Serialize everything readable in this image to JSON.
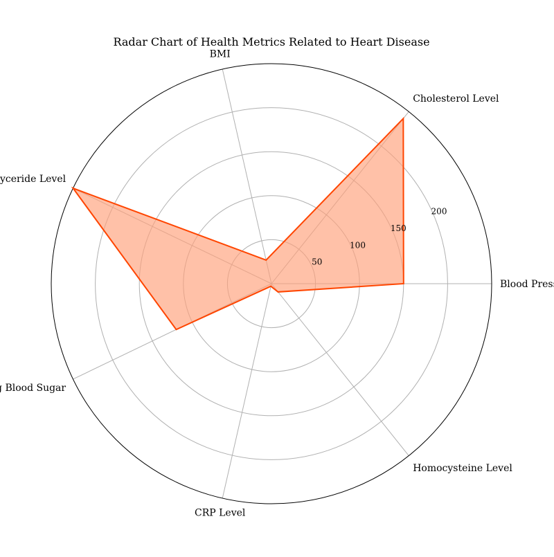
{
  "chart_data": {
    "type": "radar",
    "title": "Radar Chart of Health Metrics Related to Heart Disease",
    "categories": [
      "Blood Pressure",
      "Cholesterol Level",
      "BMI",
      "Triglyceride Level",
      "Fasting Blood Sugar",
      "CRP Level",
      "Homocysteine Level"
    ],
    "series": [
      {
        "values": [
          150,
          240,
          27.5,
          250,
          120,
          3,
          12
        ]
      }
    ],
    "rlim": [
      0,
      250
    ],
    "rticks": [
      50,
      100,
      150,
      200
    ],
    "rtick_labels": [
      "50",
      "100",
      "150",
      "200"
    ],
    "grid": true,
    "colors": {
      "line": "#ff4500",
      "fill": "#ffa07a",
      "grid": "#b0b0b0",
      "frame": "#000000"
    }
  }
}
